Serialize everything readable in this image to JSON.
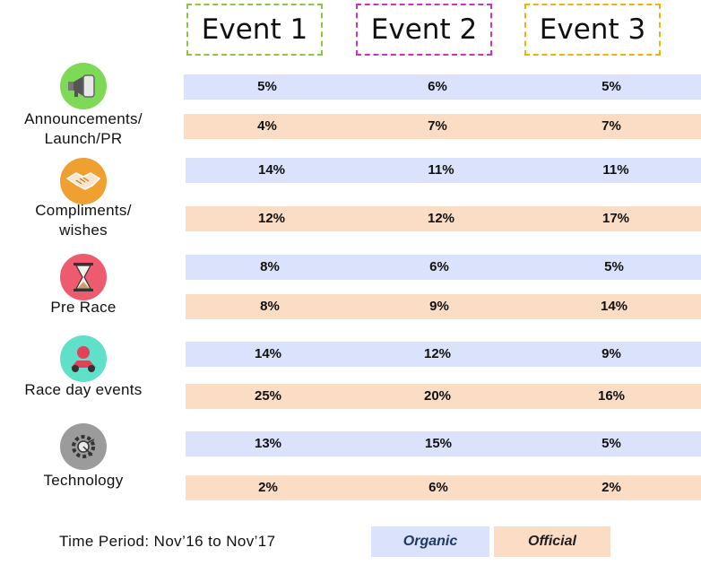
{
  "chart_data": {
    "type": "table",
    "events": [
      "Event 1",
      "Event 2",
      "Event 3"
    ],
    "series": [
      {
        "name": "Organic",
        "color": "#dae3fb"
      },
      {
        "name": "Official",
        "color": "#fbdcc5"
      }
    ],
    "rows": [
      {
        "category": "Announcements/\nLaunch/PR",
        "icon": "megaphone-icon",
        "icon_color": "#7ed957",
        "organic": [
          "5%",
          "6%",
          "5%"
        ],
        "official": [
          "4%",
          "7%",
          "7%"
        ]
      },
      {
        "category": "Compliments/\nwishes",
        "icon": "handshake-icon",
        "icon_color": "#f0a030",
        "organic": [
          "14%",
          "11%",
          "11%"
        ],
        "official": [
          "12%",
          "12%",
          "17%"
        ]
      },
      {
        "category": "Pre Race",
        "icon": "hourglass-icon",
        "icon_color": "#ef5b6e",
        "organic": [
          "8%",
          "6%",
          "5%"
        ],
        "official": [
          "8%",
          "9%",
          "14%"
        ]
      },
      {
        "category": "Race day events",
        "icon": "race-driver-icon",
        "icon_color": "#5fe0c8",
        "organic": [
          "14%",
          "12%",
          "9%"
        ],
        "official": [
          "25%",
          "20%",
          "16%"
        ]
      },
      {
        "category": "Technology",
        "icon": "gear-circuit-icon",
        "icon_color": "#9b9b9b",
        "organic": [
          "13%",
          "15%",
          "5%"
        ],
        "official": [
          "2%",
          "6%",
          "2%"
        ]
      }
    ],
    "footer": "Time Period: Nov’16 to Nov’17",
    "legend": [
      "Organic",
      "Official"
    ]
  }
}
